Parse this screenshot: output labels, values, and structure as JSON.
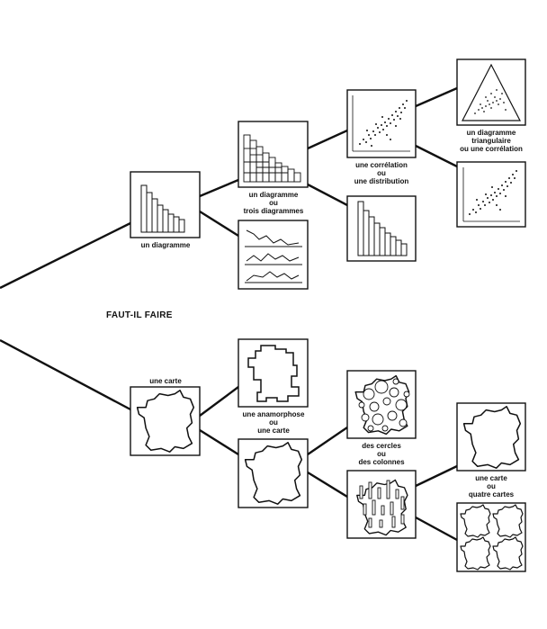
{
  "title": "FAUT-IL FAIRE",
  "nodes": {
    "un_diagramme": "un diagramme",
    "un_diagramme_ou_trois": [
      "un diagramme",
      "ou",
      "trois diagrammes"
    ],
    "correlation_ou_distribution": [
      "une corrélation",
      "ou",
      "une distribution"
    ],
    "triangulaire_ou_correlation": [
      "un diagramme",
      "triangulaire",
      "ou une corrélation"
    ],
    "une_carte": "une carte",
    "anamorphose_ou_carte": [
      "une anamorphose",
      "ou",
      "une carte"
    ],
    "cercles_ou_colonnes": [
      "des cercles",
      "ou",
      "des colonnes"
    ],
    "carte_ou_quatre": [
      "une carte",
      "ou",
      "quatre cartes"
    ]
  }
}
